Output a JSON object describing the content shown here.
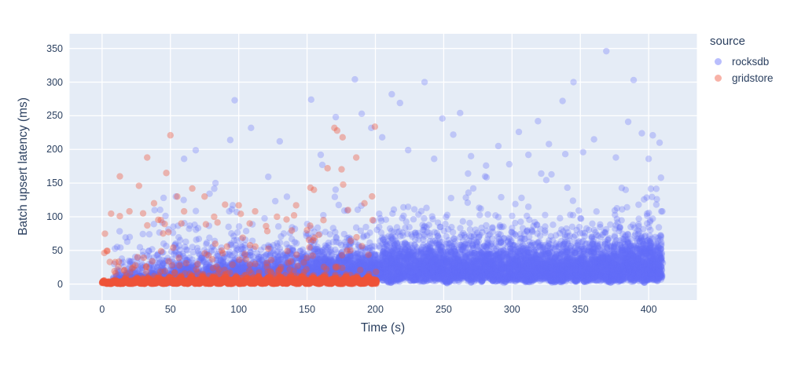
{
  "chart_data": {
    "type": "scatter",
    "title": "",
    "xlabel": "Time (s)",
    "ylabel": "Batch upsert latency (ms)",
    "x_ticks": [
      0,
      50,
      100,
      150,
      200,
      250,
      300,
      350,
      400
    ],
    "y_ticks": [
      0,
      50,
      100,
      150,
      200,
      250,
      300,
      350
    ],
    "x_range": [
      -23.8,
      435.3
    ],
    "y_range": [
      -23.7,
      371.8
    ],
    "grid": true,
    "legend_position": "top-right",
    "legend_title": "source",
    "colors": {
      "figure_bg": "#FFFFFF",
      "plot_bg": "#E5ECF6",
      "grid": "#FFFFFF",
      "text": "#2A3F5F"
    },
    "marker": {
      "radius": 4.2
    },
    "seed": 11,
    "series": [
      {
        "name": "rocksdb",
        "color": "#636EFA",
        "opacity": 0.3,
        "t_start": 8,
        "t_end": 411,
        "n_points": 9000,
        "profile": {
          "base": 1.2,
          "wave_amp": 2.6,
          "wave_f1": 0.74,
          "wave_f2": 0.31,
          "spread_min": 7,
          "spread_ramp": 26,
          "ramp_end": 205,
          "late_extra": 5,
          "mid_prob": 0.22,
          "mid_scale": 22,
          "tail_prob": 0.075,
          "tail_scale": 30,
          "cluster_step": 2.015,
          "cluster_jitter": 0.55,
          "density_skew": 0.75
        },
        "outliers": [
          [
            97,
            273
          ],
          [
            109,
            232
          ],
          [
            130,
            212
          ],
          [
            153,
            274
          ],
          [
            160,
            192
          ],
          [
            171,
            248
          ],
          [
            185,
            304
          ],
          [
            190,
            253
          ],
          [
            197,
            232
          ],
          [
            205,
            218
          ],
          [
            212,
            282
          ],
          [
            218,
            269
          ],
          [
            224,
            199
          ],
          [
            236,
            300
          ],
          [
            243,
            186
          ],
          [
            249,
            246
          ],
          [
            257,
            222
          ],
          [
            262,
            254
          ],
          [
            270,
            190
          ],
          [
            281,
            176
          ],
          [
            290,
            205
          ],
          [
            298,
            178
          ],
          [
            305,
            226
          ],
          [
            312,
            192
          ],
          [
            319,
            242
          ],
          [
            327,
            208
          ],
          [
            337,
            272
          ],
          [
            345,
            300
          ],
          [
            352,
            196
          ],
          [
            360,
            215
          ],
          [
            369,
            346
          ],
          [
            376,
            188
          ],
          [
            385,
            241
          ],
          [
            389,
            303
          ],
          [
            395,
            224
          ],
          [
            400,
            186
          ],
          [
            403,
            221
          ],
          [
            406,
            126
          ],
          [
            408,
            210
          ],
          [
            409,
            158
          ],
          [
            410,
            108
          ],
          [
            83,
            150
          ],
          [
            60,
            186
          ],
          [
            45,
            128
          ]
        ]
      },
      {
        "name": "gridstore",
        "color": "#EF553B",
        "opacity": 0.38,
        "t_start": 0,
        "t_end": 201,
        "n_points": 3400,
        "profile": {
          "sigma_min": 1.3,
          "sigma_ramp": 1.6,
          "sigma_ramp_t": 50,
          "bump_amp_min": 3,
          "bump_amp_ramp": 4.5,
          "bump_ramp_t": 60,
          "bump_f": 0.78,
          "tail_prob": 0.045,
          "tail_scale": 20,
          "mid_prob": 0.012,
          "mid_scale": 45
        },
        "outliers": [
          [
            13,
            160
          ],
          [
            20,
            108
          ],
          [
            27,
            146
          ],
          [
            30,
            105
          ],
          [
            33,
            188
          ],
          [
            38,
            120
          ],
          [
            43,
            95
          ],
          [
            47,
            165
          ],
          [
            50,
            221
          ],
          [
            55,
            130
          ],
          [
            58,
            90
          ],
          [
            60,
            108
          ],
          [
            66,
            142
          ],
          [
            75,
            130
          ],
          [
            82,
            100
          ],
          [
            90,
            118
          ],
          [
            100,
            117
          ],
          [
            108,
            90
          ],
          [
            112,
            108
          ],
          [
            120,
            86
          ],
          [
            128,
            100
          ],
          [
            135,
            96
          ],
          [
            142,
            117
          ],
          [
            150,
            80
          ],
          [
            155,
            140
          ],
          [
            162,
            95
          ],
          [
            165,
            172
          ],
          [
            170,
            232
          ],
          [
            172,
            228
          ],
          [
            176,
            218
          ],
          [
            180,
            110
          ],
          [
            186,
            188
          ],
          [
            192,
            120
          ],
          [
            198,
            95
          ]
        ]
      }
    ]
  }
}
